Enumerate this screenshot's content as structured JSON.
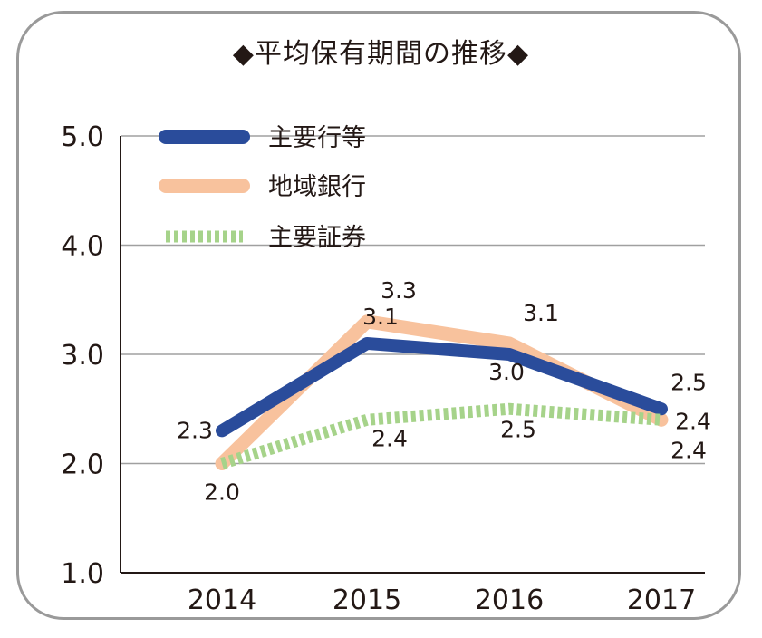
{
  "chart_data": {
    "type": "line",
    "title": "◆平均保有期間の推移◆",
    "categories": [
      "2014",
      "2015",
      "2016",
      "2017"
    ],
    "ylim": [
      1.0,
      5.0
    ],
    "yticks": [
      "1.0",
      "2.0",
      "3.0",
      "4.0",
      "5.0"
    ],
    "grid": true,
    "legend_position": "top-left",
    "series": [
      {
        "name": "主要行等",
        "values": [
          2.3,
          3.1,
          3.0,
          2.5
        ],
        "labels": [
          "2.3",
          "3.1",
          "3.0",
          "2.5"
        ],
        "color": "#2a4c9b",
        "style": "solid"
      },
      {
        "name": "地域銀行",
        "values": [
          2.0,
          3.3,
          3.1,
          2.4
        ],
        "labels": [
          "2.0",
          "3.3",
          "3.1",
          "2.4"
        ],
        "color": "#f8c29d",
        "style": "solid"
      },
      {
        "name": "主要証券",
        "values": [
          2.0,
          2.4,
          2.5,
          2.4
        ],
        "labels": [
          "",
          "2.4",
          "2.5",
          "2.4"
        ],
        "color": "#a6d38a",
        "style": "dotted"
      }
    ]
  }
}
